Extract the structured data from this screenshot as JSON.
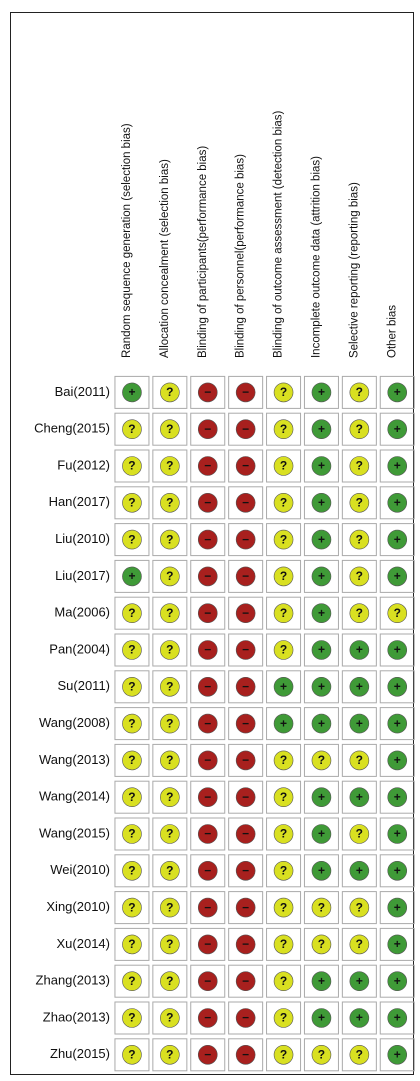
{
  "columns": [
    "Random sequence generation (selection bias)",
    "Allocation concealment (selection bias)",
    "Blinding of participants(performance bias)",
    "Blinding of personnel(performance bias)",
    "Blinding of outcome assessment (detection bias)",
    "Incomplete outcome data (attrition bias)",
    "Selective reporting (reporting bias)",
    "Other bias"
  ],
  "colors": {
    "+": "#3f9a37",
    "?": "#d9e021",
    "−": "#a8201e"
  },
  "rows": [
    {
      "study": "Bai(2011)",
      "ratings": [
        "+",
        "?",
        "−",
        "−",
        "?",
        "+",
        "?",
        "+"
      ]
    },
    {
      "study": "Cheng(2015)",
      "ratings": [
        "?",
        "?",
        "−",
        "−",
        "?",
        "+",
        "?",
        "+"
      ]
    },
    {
      "study": "Fu(2012)",
      "ratings": [
        "?",
        "?",
        "−",
        "−",
        "?",
        "+",
        "?",
        "+"
      ]
    },
    {
      "study": "Han(2017)",
      "ratings": [
        "?",
        "?",
        "−",
        "−",
        "?",
        "+",
        "?",
        "+"
      ]
    },
    {
      "study": "Liu(2010)",
      "ratings": [
        "?",
        "?",
        "−",
        "−",
        "?",
        "+",
        "?",
        "+"
      ]
    },
    {
      "study": "Liu(2017)",
      "ratings": [
        "+",
        "?",
        "−",
        "−",
        "?",
        "+",
        "?",
        "+"
      ]
    },
    {
      "study": "Ma(2006)",
      "ratings": [
        "?",
        "?",
        "−",
        "−",
        "?",
        "+",
        "?",
        "?"
      ]
    },
    {
      "study": "Pan(2004)",
      "ratings": [
        "?",
        "?",
        "−",
        "−",
        "?",
        "+",
        "+",
        "+"
      ]
    },
    {
      "study": "Su(2011)",
      "ratings": [
        "?",
        "?",
        "−",
        "−",
        "+",
        "+",
        "+",
        "+"
      ]
    },
    {
      "study": "Wang(2008)",
      "ratings": [
        "?",
        "?",
        "−",
        "−",
        "+",
        "+",
        "+",
        "+"
      ]
    },
    {
      "study": "Wang(2013)",
      "ratings": [
        "?",
        "?",
        "−",
        "−",
        "?",
        "?",
        "?",
        "+"
      ]
    },
    {
      "study": "Wang(2014)",
      "ratings": [
        "?",
        "?",
        "−",
        "−",
        "?",
        "+",
        "+",
        "+"
      ]
    },
    {
      "study": "Wang(2015)",
      "ratings": [
        "?",
        "?",
        "−",
        "−",
        "?",
        "+",
        "?",
        "+"
      ]
    },
    {
      "study": "Wei(2010)",
      "ratings": [
        "?",
        "?",
        "−",
        "−",
        "?",
        "+",
        "+",
        "+"
      ]
    },
    {
      "study": "Xing(2010)",
      "ratings": [
        "?",
        "?",
        "−",
        "−",
        "?",
        "?",
        "?",
        "+"
      ]
    },
    {
      "study": "Xu(2014)",
      "ratings": [
        "?",
        "?",
        "−",
        "−",
        "?",
        "?",
        "?",
        "+"
      ]
    },
    {
      "study": "Zhang(2013)",
      "ratings": [
        "?",
        "?",
        "−",
        "−",
        "?",
        "+",
        "+",
        "+"
      ]
    },
    {
      "study": "Zhao(2013)",
      "ratings": [
        "?",
        "?",
        "−",
        "−",
        "?",
        "+",
        "+",
        "+"
      ]
    },
    {
      "study": "Zhu(2015)",
      "ratings": [
        "?",
        "?",
        "−",
        "−",
        "?",
        "?",
        "?",
        "+"
      ]
    }
  ]
}
